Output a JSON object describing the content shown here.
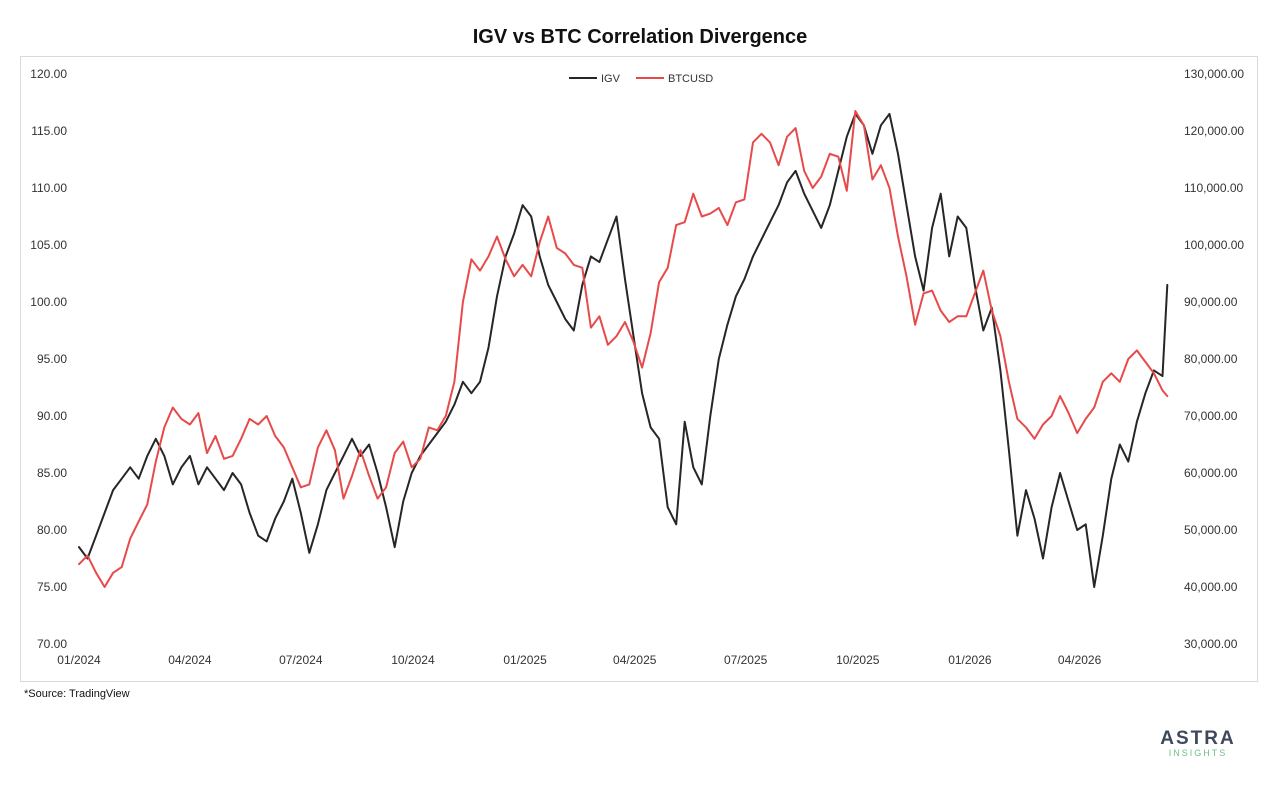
{
  "chart_data": {
    "type": "line",
    "title": "IGV vs BTC Correlation Divergence",
    "x_axis": {
      "type": "date",
      "range": [
        "2024-01-01",
        "2026-06-15"
      ],
      "tick_labels": [
        "01/2024",
        "04/2024",
        "07/2024",
        "10/2024",
        "01/2025",
        "04/2025",
        "07/2025",
        "10/2025",
        "01/2026",
        "04/2026"
      ],
      "tick_dates": [
        "2024-01-01",
        "2024-04-01",
        "2024-07-01",
        "2024-10-01",
        "2025-01-01",
        "2025-04-01",
        "2025-07-01",
        "2025-10-01",
        "2026-01-01",
        "2026-04-01"
      ]
    },
    "y_axis_left": {
      "range": [
        70,
        120
      ],
      "tick_labels": [
        "70.00",
        "75.00",
        "80.00",
        "85.00",
        "90.00",
        "95.00",
        "100.00",
        "105.00",
        "110.00",
        "115.00",
        "120.00"
      ]
    },
    "y_axis_right": {
      "range": [
        30000,
        130000
      ],
      "tick_labels": [
        "30,000.00",
        "40,000.00",
        "50,000.00",
        "60,000.00",
        "70,000.00",
        "80,000.00",
        "90,000.00",
        "100,000.00",
        "110,000.00",
        "120,000.00",
        "130,000.00"
      ]
    },
    "grid": false,
    "legend_position": "top-center",
    "series": [
      {
        "name": "IGV",
        "axis": "left",
        "color": "#262626",
        "points": [
          [
            "2024-01-01",
            78.5
          ],
          [
            "2024-01-08",
            77.5
          ],
          [
            "2024-01-15",
            79.5
          ],
          [
            "2024-01-22",
            81.5
          ],
          [
            "2024-01-29",
            83.5
          ],
          [
            "2024-02-05",
            84.5
          ],
          [
            "2024-02-12",
            85.5
          ],
          [
            "2024-02-19",
            84.5
          ],
          [
            "2024-02-26",
            86.5
          ],
          [
            "2024-03-04",
            88.0
          ],
          [
            "2024-03-11",
            86.5
          ],
          [
            "2024-03-18",
            84.0
          ],
          [
            "2024-03-25",
            85.5
          ],
          [
            "2024-04-01",
            86.5
          ],
          [
            "2024-04-08",
            84.0
          ],
          [
            "2024-04-15",
            85.5
          ],
          [
            "2024-04-22",
            84.5
          ],
          [
            "2024-04-29",
            83.5
          ],
          [
            "2024-05-06",
            85.0
          ],
          [
            "2024-05-13",
            84.0
          ],
          [
            "2024-05-20",
            81.5
          ],
          [
            "2024-05-27",
            79.5
          ],
          [
            "2024-06-03",
            79.0
          ],
          [
            "2024-06-10",
            81.0
          ],
          [
            "2024-06-17",
            82.5
          ],
          [
            "2024-06-24",
            84.5
          ],
          [
            "2024-07-01",
            81.5
          ],
          [
            "2024-07-08",
            78.0
          ],
          [
            "2024-07-15",
            80.5
          ],
          [
            "2024-07-22",
            83.5
          ],
          [
            "2024-07-29",
            85.0
          ],
          [
            "2024-08-05",
            86.5
          ],
          [
            "2024-08-12",
            88.0
          ],
          [
            "2024-08-19",
            86.5
          ],
          [
            "2024-08-26",
            87.5
          ],
          [
            "2024-09-02",
            85.0
          ],
          [
            "2024-09-09",
            82.0
          ],
          [
            "2024-09-16",
            78.5
          ],
          [
            "2024-09-23",
            82.5
          ],
          [
            "2024-09-30",
            85.0
          ],
          [
            "2024-10-07",
            86.5
          ],
          [
            "2024-10-14",
            87.5
          ],
          [
            "2024-10-21",
            88.5
          ],
          [
            "2024-10-28",
            89.5
          ],
          [
            "2024-11-04",
            91.0
          ],
          [
            "2024-11-11",
            93.0
          ],
          [
            "2024-11-18",
            92.0
          ],
          [
            "2024-11-25",
            93.0
          ],
          [
            "2024-12-02",
            96.0
          ],
          [
            "2024-12-09",
            100.5
          ],
          [
            "2024-12-16",
            104.0
          ],
          [
            "2024-12-23",
            106.0
          ],
          [
            "2024-12-30",
            108.5
          ],
          [
            "2025-01-06",
            107.5
          ],
          [
            "2025-01-13",
            104.0
          ],
          [
            "2025-01-20",
            101.5
          ],
          [
            "2025-01-27",
            100.0
          ],
          [
            "2025-02-03",
            98.5
          ],
          [
            "2025-02-10",
            97.5
          ],
          [
            "2025-02-17",
            101.5
          ],
          [
            "2025-02-24",
            104.0
          ],
          [
            "2025-03-03",
            103.5
          ],
          [
            "2025-03-10",
            105.5
          ],
          [
            "2025-03-17",
            107.5
          ],
          [
            "2025-03-24",
            102.0
          ],
          [
            "2025-03-31",
            97.0
          ],
          [
            "2025-04-07",
            92.0
          ],
          [
            "2025-04-14",
            89.0
          ],
          [
            "2025-04-21",
            88.0
          ],
          [
            "2025-04-28",
            82.0
          ],
          [
            "2025-05-05",
            80.5
          ],
          [
            "2025-05-12",
            89.5
          ],
          [
            "2025-05-19",
            85.5
          ],
          [
            "2025-05-26",
            84.0
          ],
          [
            "2025-06-02",
            90.0
          ],
          [
            "2025-06-09",
            95.0
          ],
          [
            "2025-06-16",
            98.0
          ],
          [
            "2025-06-23",
            100.5
          ],
          [
            "2025-06-30",
            102.0
          ],
          [
            "2025-07-07",
            104.0
          ],
          [
            "2025-07-14",
            105.5
          ],
          [
            "2025-07-21",
            107.0
          ],
          [
            "2025-07-28",
            108.5
          ],
          [
            "2025-08-04",
            110.5
          ],
          [
            "2025-08-11",
            111.5
          ],
          [
            "2025-08-18",
            109.5
          ],
          [
            "2025-08-25",
            108.0
          ],
          [
            "2025-09-01",
            106.5
          ],
          [
            "2025-09-08",
            108.5
          ],
          [
            "2025-09-15",
            111.5
          ],
          [
            "2025-09-22",
            114.5
          ],
          [
            "2025-09-29",
            116.5
          ],
          [
            "2025-10-06",
            115.5
          ],
          [
            "2025-10-13",
            113.0
          ],
          [
            "2025-10-20",
            115.5
          ],
          [
            "2025-10-27",
            116.5
          ],
          [
            "2025-11-03",
            113.0
          ],
          [
            "2025-11-10",
            108.5
          ],
          [
            "2025-11-17",
            104.0
          ],
          [
            "2025-11-24",
            101.0
          ],
          [
            "2025-12-01",
            106.5
          ],
          [
            "2025-12-08",
            109.5
          ],
          [
            "2025-12-15",
            104.0
          ],
          [
            "2025-12-22",
            107.5
          ],
          [
            "2025-12-29",
            106.5
          ],
          [
            "2026-01-05",
            101.5
          ],
          [
            "2026-01-12",
            97.5
          ],
          [
            "2026-01-19",
            99.5
          ],
          [
            "2026-01-26",
            94.0
          ],
          [
            "2026-02-02",
            87.0
          ],
          [
            "2026-02-09",
            79.5
          ],
          [
            "2026-02-16",
            83.5
          ],
          [
            "2026-02-23",
            81.0
          ],
          [
            "2026-03-02",
            77.5
          ],
          [
            "2026-03-09",
            82.0
          ],
          [
            "2026-03-16",
            85.0
          ],
          [
            "2026-03-23",
            82.5
          ],
          [
            "2026-03-30",
            80.0
          ],
          [
            "2026-04-06",
            80.5
          ],
          [
            "2026-04-13",
            75.0
          ],
          [
            "2026-04-20",
            79.5
          ],
          [
            "2026-04-27",
            84.5
          ],
          [
            "2026-05-04",
            87.5
          ],
          [
            "2026-05-11",
            86.0
          ],
          [
            "2026-05-18",
            89.5
          ],
          [
            "2026-05-25",
            92.0
          ],
          [
            "2026-06-01",
            94.0
          ],
          [
            "2026-06-08",
            93.5
          ],
          [
            "2026-06-12",
            101.5
          ]
        ]
      },
      {
        "name": "BTCUSD",
        "axis": "right",
        "color": "#e84a4a",
        "points": [
          [
            "2024-01-01",
            44000
          ],
          [
            "2024-01-08",
            45500
          ],
          [
            "2024-01-15",
            42500
          ],
          [
            "2024-01-22",
            40000
          ],
          [
            "2024-01-29",
            42500
          ],
          [
            "2024-02-05",
            43500
          ],
          [
            "2024-02-12",
            48500
          ],
          [
            "2024-02-19",
            51500
          ],
          [
            "2024-02-26",
            54500
          ],
          [
            "2024-03-04",
            62000
          ],
          [
            "2024-03-11",
            68000
          ],
          [
            "2024-03-18",
            71500
          ],
          [
            "2024-03-25",
            69500
          ],
          [
            "2024-04-01",
            68500
          ],
          [
            "2024-04-08",
            70500
          ],
          [
            "2024-04-15",
            63500
          ],
          [
            "2024-04-22",
            66500
          ],
          [
            "2024-04-29",
            62500
          ],
          [
            "2024-05-06",
            63000
          ],
          [
            "2024-05-13",
            66000
          ],
          [
            "2024-05-20",
            69500
          ],
          [
            "2024-05-27",
            68500
          ],
          [
            "2024-06-03",
            70000
          ],
          [
            "2024-06-10",
            66500
          ],
          [
            "2024-06-17",
            64500
          ],
          [
            "2024-06-24",
            61000
          ],
          [
            "2024-07-01",
            57500
          ],
          [
            "2024-07-08",
            58000
          ],
          [
            "2024-07-15",
            64500
          ],
          [
            "2024-07-22",
            67500
          ],
          [
            "2024-07-29",
            64000
          ],
          [
            "2024-08-05",
            55500
          ],
          [
            "2024-08-12",
            59500
          ],
          [
            "2024-08-19",
            64000
          ],
          [
            "2024-08-26",
            59500
          ],
          [
            "2024-09-02",
            55500
          ],
          [
            "2024-09-09",
            57500
          ],
          [
            "2024-09-16",
            63500
          ],
          [
            "2024-09-23",
            65500
          ],
          [
            "2024-09-30",
            61000
          ],
          [
            "2024-10-07",
            62500
          ],
          [
            "2024-10-14",
            68000
          ],
          [
            "2024-10-21",
            67500
          ],
          [
            "2024-10-28",
            70000
          ],
          [
            "2024-11-04",
            76000
          ],
          [
            "2024-11-11",
            90000
          ],
          [
            "2024-11-18",
            97500
          ],
          [
            "2024-11-25",
            95500
          ],
          [
            "2024-12-02",
            98000
          ],
          [
            "2024-12-09",
            101500
          ],
          [
            "2024-12-16",
            97500
          ],
          [
            "2024-12-23",
            94500
          ],
          [
            "2024-12-30",
            96500
          ],
          [
            "2025-01-06",
            94500
          ],
          [
            "2025-01-13",
            100500
          ],
          [
            "2025-01-20",
            105000
          ],
          [
            "2025-01-27",
            99500
          ],
          [
            "2025-02-03",
            98500
          ],
          [
            "2025-02-10",
            96500
          ],
          [
            "2025-02-17",
            96000
          ],
          [
            "2025-02-24",
            85500
          ],
          [
            "2025-03-03",
            87500
          ],
          [
            "2025-03-10",
            82500
          ],
          [
            "2025-03-17",
            84000
          ],
          [
            "2025-03-24",
            86500
          ],
          [
            "2025-03-31",
            83000
          ],
          [
            "2025-04-07",
            78500
          ],
          [
            "2025-04-14",
            84500
          ],
          [
            "2025-04-21",
            93500
          ],
          [
            "2025-04-28",
            96000
          ],
          [
            "2025-05-05",
            103500
          ],
          [
            "2025-05-12",
            104000
          ],
          [
            "2025-05-19",
            109000
          ],
          [
            "2025-05-26",
            105000
          ],
          [
            "2025-06-02",
            105500
          ],
          [
            "2025-06-09",
            106500
          ],
          [
            "2025-06-16",
            103500
          ],
          [
            "2025-06-23",
            107500
          ],
          [
            "2025-06-30",
            108000
          ],
          [
            "2025-07-07",
            118000
          ],
          [
            "2025-07-14",
            119500
          ],
          [
            "2025-07-21",
            118000
          ],
          [
            "2025-07-28",
            114000
          ],
          [
            "2025-08-04",
            119000
          ],
          [
            "2025-08-11",
            120500
          ],
          [
            "2025-08-18",
            113000
          ],
          [
            "2025-08-25",
            110000
          ],
          [
            "2025-09-01",
            112000
          ],
          [
            "2025-09-08",
            116000
          ],
          [
            "2025-09-15",
            115500
          ],
          [
            "2025-09-22",
            109500
          ],
          [
            "2025-09-29",
            123500
          ],
          [
            "2025-10-06",
            121000
          ],
          [
            "2025-10-13",
            111500
          ],
          [
            "2025-10-20",
            114000
          ],
          [
            "2025-10-27",
            110000
          ],
          [
            "2025-11-03",
            101500
          ],
          [
            "2025-11-10",
            94500
          ],
          [
            "2025-11-17",
            86000
          ],
          [
            "2025-11-24",
            91500
          ],
          [
            "2025-12-01",
            92000
          ],
          [
            "2025-12-08",
            88500
          ],
          [
            "2025-12-15",
            86500
          ],
          [
            "2025-12-22",
            87500
          ],
          [
            "2025-12-29",
            87500
          ],
          [
            "2026-01-05",
            91500
          ],
          [
            "2026-01-12",
            95500
          ],
          [
            "2026-01-19",
            88500
          ],
          [
            "2026-01-26",
            84000
          ],
          [
            "2026-02-02",
            76000
          ],
          [
            "2026-02-09",
            69500
          ],
          [
            "2026-02-16",
            68000
          ],
          [
            "2026-02-23",
            66000
          ],
          [
            "2026-03-02",
            68500
          ],
          [
            "2026-03-09",
            70000
          ],
          [
            "2026-03-16",
            73500
          ],
          [
            "2026-03-23",
            70500
          ],
          [
            "2026-03-30",
            67000
          ],
          [
            "2026-04-06",
            69500
          ],
          [
            "2026-04-13",
            71500
          ],
          [
            "2026-04-20",
            76000
          ],
          [
            "2026-04-27",
            77500
          ],
          [
            "2026-05-04",
            76000
          ],
          [
            "2026-05-11",
            80000
          ],
          [
            "2026-05-18",
            81500
          ],
          [
            "2026-05-25",
            79500
          ],
          [
            "2026-06-01",
            77500
          ],
          [
            "2026-06-08",
            74500
          ],
          [
            "2026-06-12",
            73500
          ]
        ]
      }
    ]
  },
  "footer": {
    "source": "*Source: TradingView",
    "logo_text": "ASTRA",
    "logo_subtext": "INSIGHTS"
  }
}
